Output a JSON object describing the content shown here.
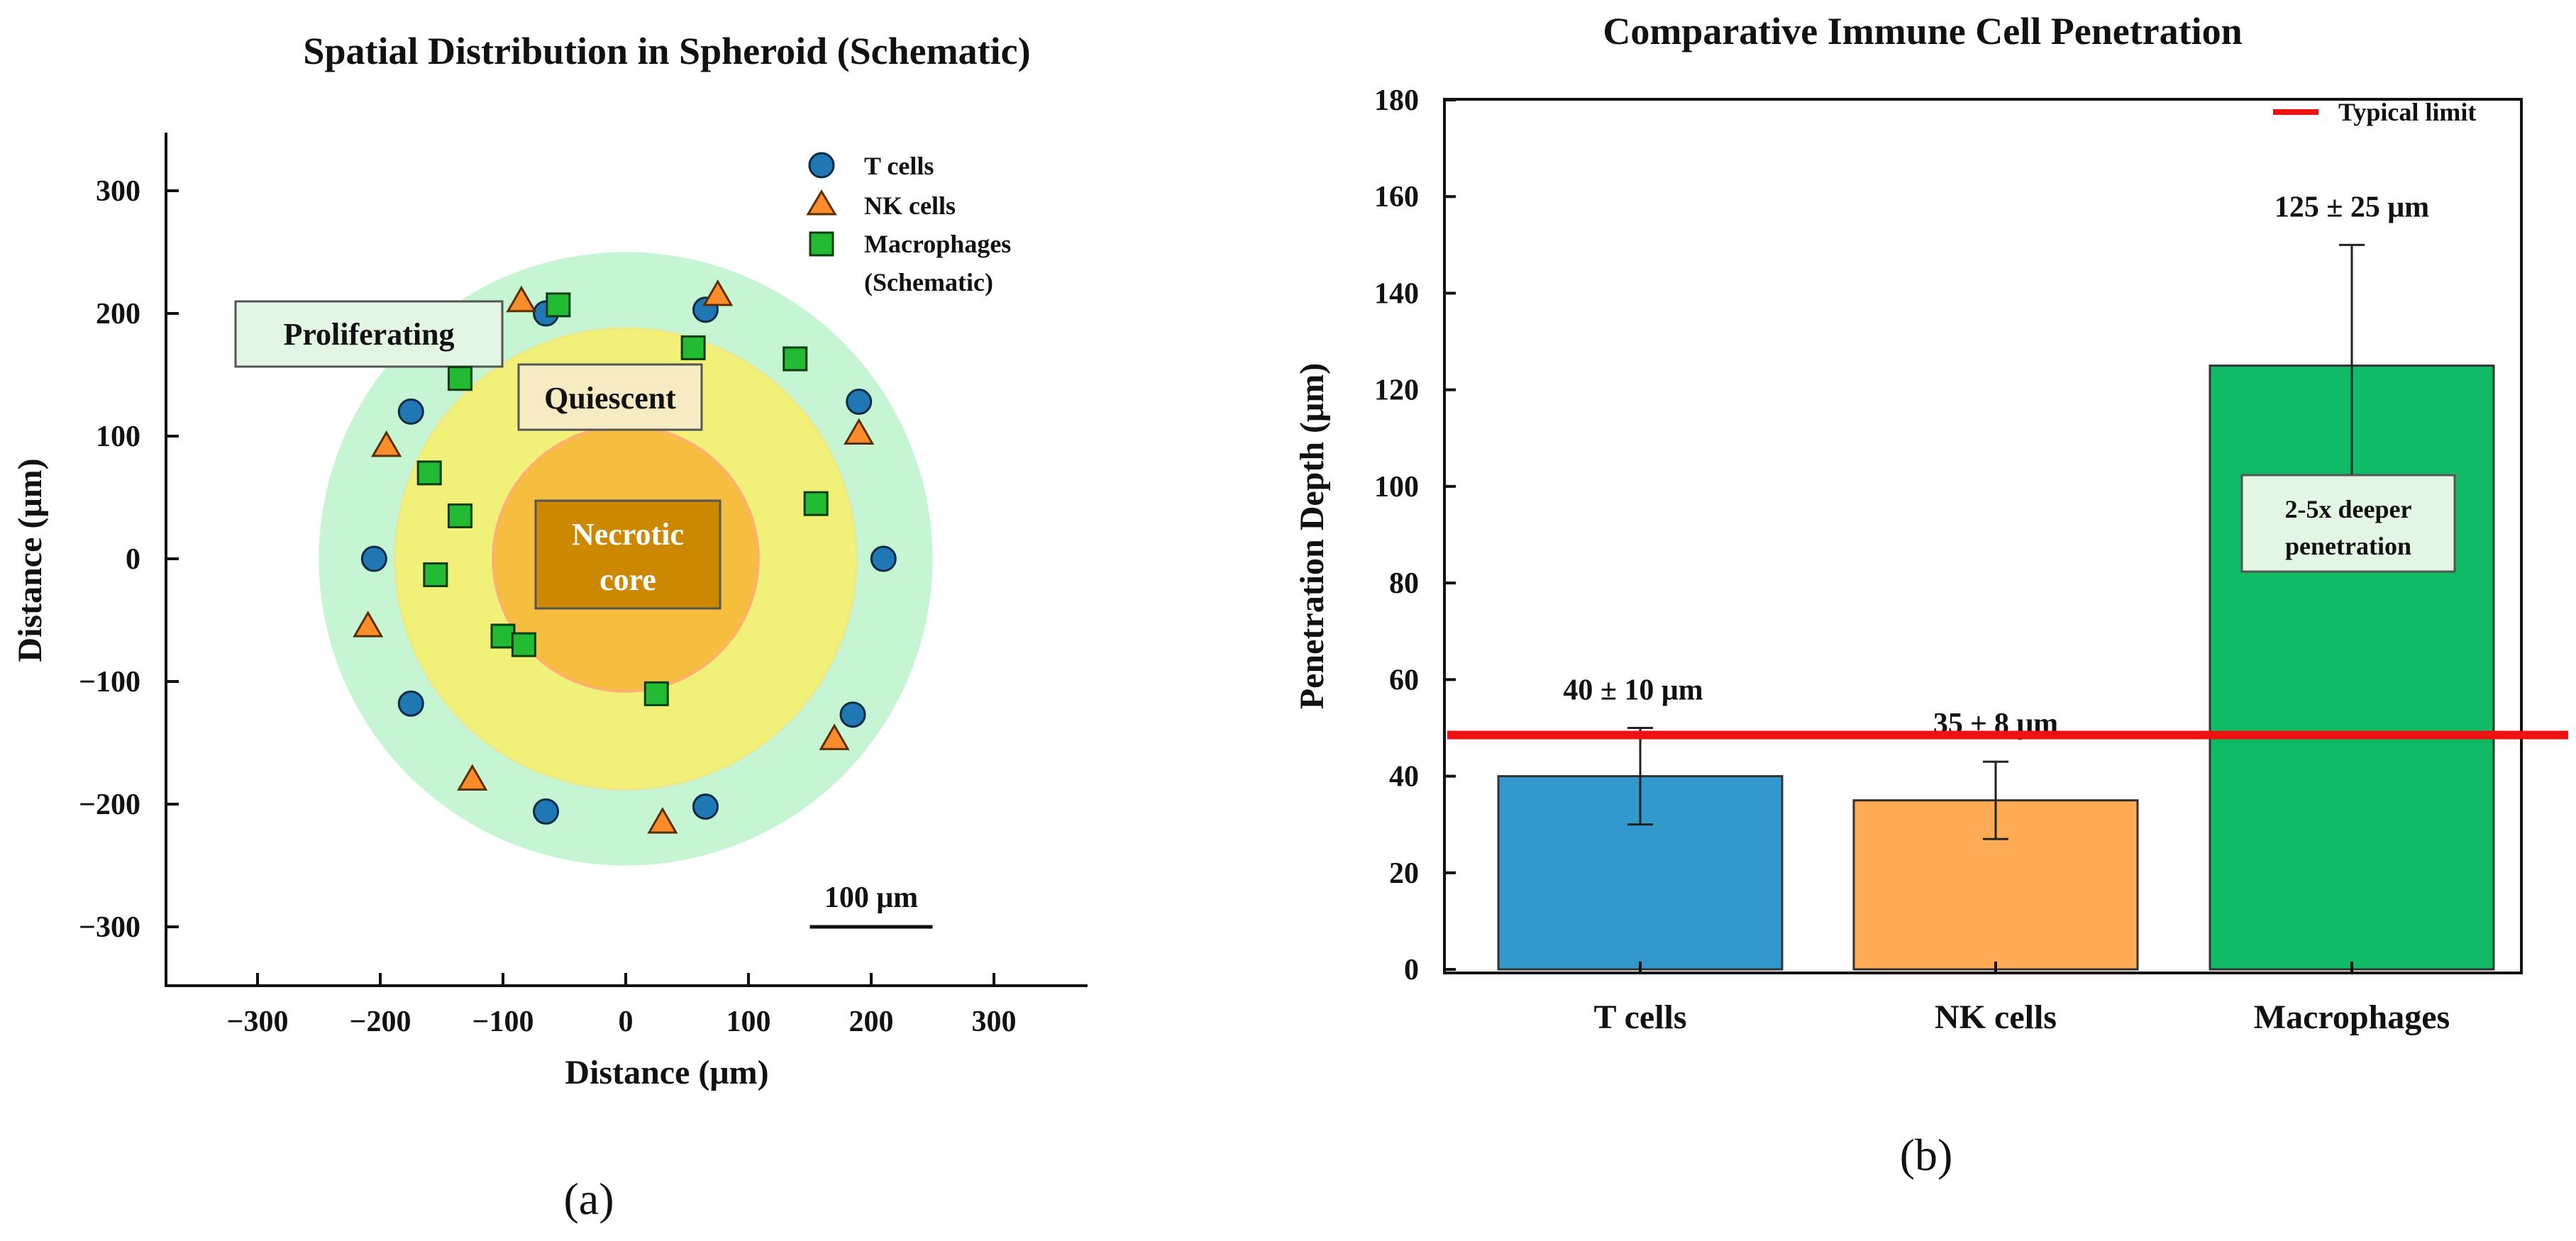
{
  "figure_labels": {
    "a": "(a)",
    "b": "(b)"
  },
  "chart_data": [
    {
      "type": "scatter",
      "title": "Spatial Distribution in Spheroid (Schematic)",
      "xlabel": "Distance (μm)",
      "ylabel": "Distance (μm)",
      "xlim": [
        -350,
        350
      ],
      "ylim": [
        -350,
        350
      ],
      "xticks": [
        -300,
        -200,
        -100,
        0,
        100,
        200,
        300
      ],
      "yticks": [
        -300,
        -200,
        -100,
        0,
        100,
        200,
        300
      ],
      "xtick_labels": [
        "−300",
        "−200",
        "−100",
        "0",
        "100",
        "200",
        "300"
      ],
      "ytick_labels": [
        "−300",
        "−200",
        "−100",
        "0",
        "100",
        "200",
        "300"
      ],
      "zones": [
        {
          "name": "Proliferating",
          "radius": 250,
          "color": "#c6f5d3"
        },
        {
          "name": "Quiescent",
          "radius": 188,
          "color": "#f1f17a"
        },
        {
          "name": "Necrotic core",
          "radius": 108,
          "color": "#f6be3e"
        }
      ],
      "zone_labels": {
        "proliferating": "Proliferating",
        "quiescent": "Quiescent",
        "necrotic_line1": "Necrotic",
        "necrotic_line2": "core"
      },
      "scale_bar_label": "100 μm",
      "scale_bar_length": 100,
      "legend": {
        "t_cells": "T cells",
        "nk_cells": "NK cells",
        "macrophages_line1": "Macrophages",
        "macrophages_line2": "(Schematic)"
      },
      "series": [
        {
          "name": "T cells",
          "marker": "circle",
          "color": "#1f77b4",
          "points": [
            [
              -65,
              200
            ],
            [
              65,
              203
            ],
            [
              -175,
              120
            ],
            [
              190,
              128
            ],
            [
              -205,
              0
            ],
            [
              210,
              0
            ],
            [
              -175,
              -118
            ],
            [
              185,
              -127
            ],
            [
              -65,
              -206
            ],
            [
              65,
              -202
            ]
          ]
        },
        {
          "name": "NK cells",
          "marker": "triangle",
          "color": "#ff8c2a",
          "points": [
            [
              -85,
              210
            ],
            [
              75,
              215
            ],
            [
              -195,
              92
            ],
            [
              190,
              102
            ],
            [
              -210,
              -55
            ],
            [
              170,
              -147
            ],
            [
              -125,
              -180
            ],
            [
              30,
              -215
            ]
          ]
        },
        {
          "name": "Macrophages",
          "marker": "square",
          "color": "#22bb33",
          "points": [
            [
              -55,
              207
            ],
            [
              55,
              172
            ],
            [
              138,
              163
            ],
            [
              -135,
              147
            ],
            [
              -160,
              70
            ],
            [
              -135,
              35
            ],
            [
              155,
              45
            ],
            [
              -155,
              -13
            ],
            [
              -100,
              -63
            ],
            [
              -83,
              -70
            ],
            [
              25,
              -110
            ]
          ]
        }
      ]
    },
    {
      "type": "bar",
      "title": "Comparative Immune Cell Penetration",
      "ylabel": "Penetration Depth (μm)",
      "categories": [
        "T cells",
        "NK cells",
        "Macrophages"
      ],
      "values": [
        40,
        35,
        125
      ],
      "errors": [
        10,
        8,
        25
      ],
      "colors": [
        "#3399cc",
        "#ffaa55",
        "#11bb66"
      ],
      "data_labels": [
        "40 ± 10 μm",
        "35 ± 8 μm",
        "125 ± 25 μm"
      ],
      "ylim": [
        0,
        180
      ],
      "yticks": [
        0,
        20,
        40,
        60,
        80,
        100,
        120,
        140,
        160,
        180
      ],
      "reference_line": {
        "value": 50,
        "label": "Typical limit",
        "color": "#ee1111"
      },
      "annotation": {
        "line1": "2-5x deeper",
        "line2": "penetration"
      }
    }
  ]
}
